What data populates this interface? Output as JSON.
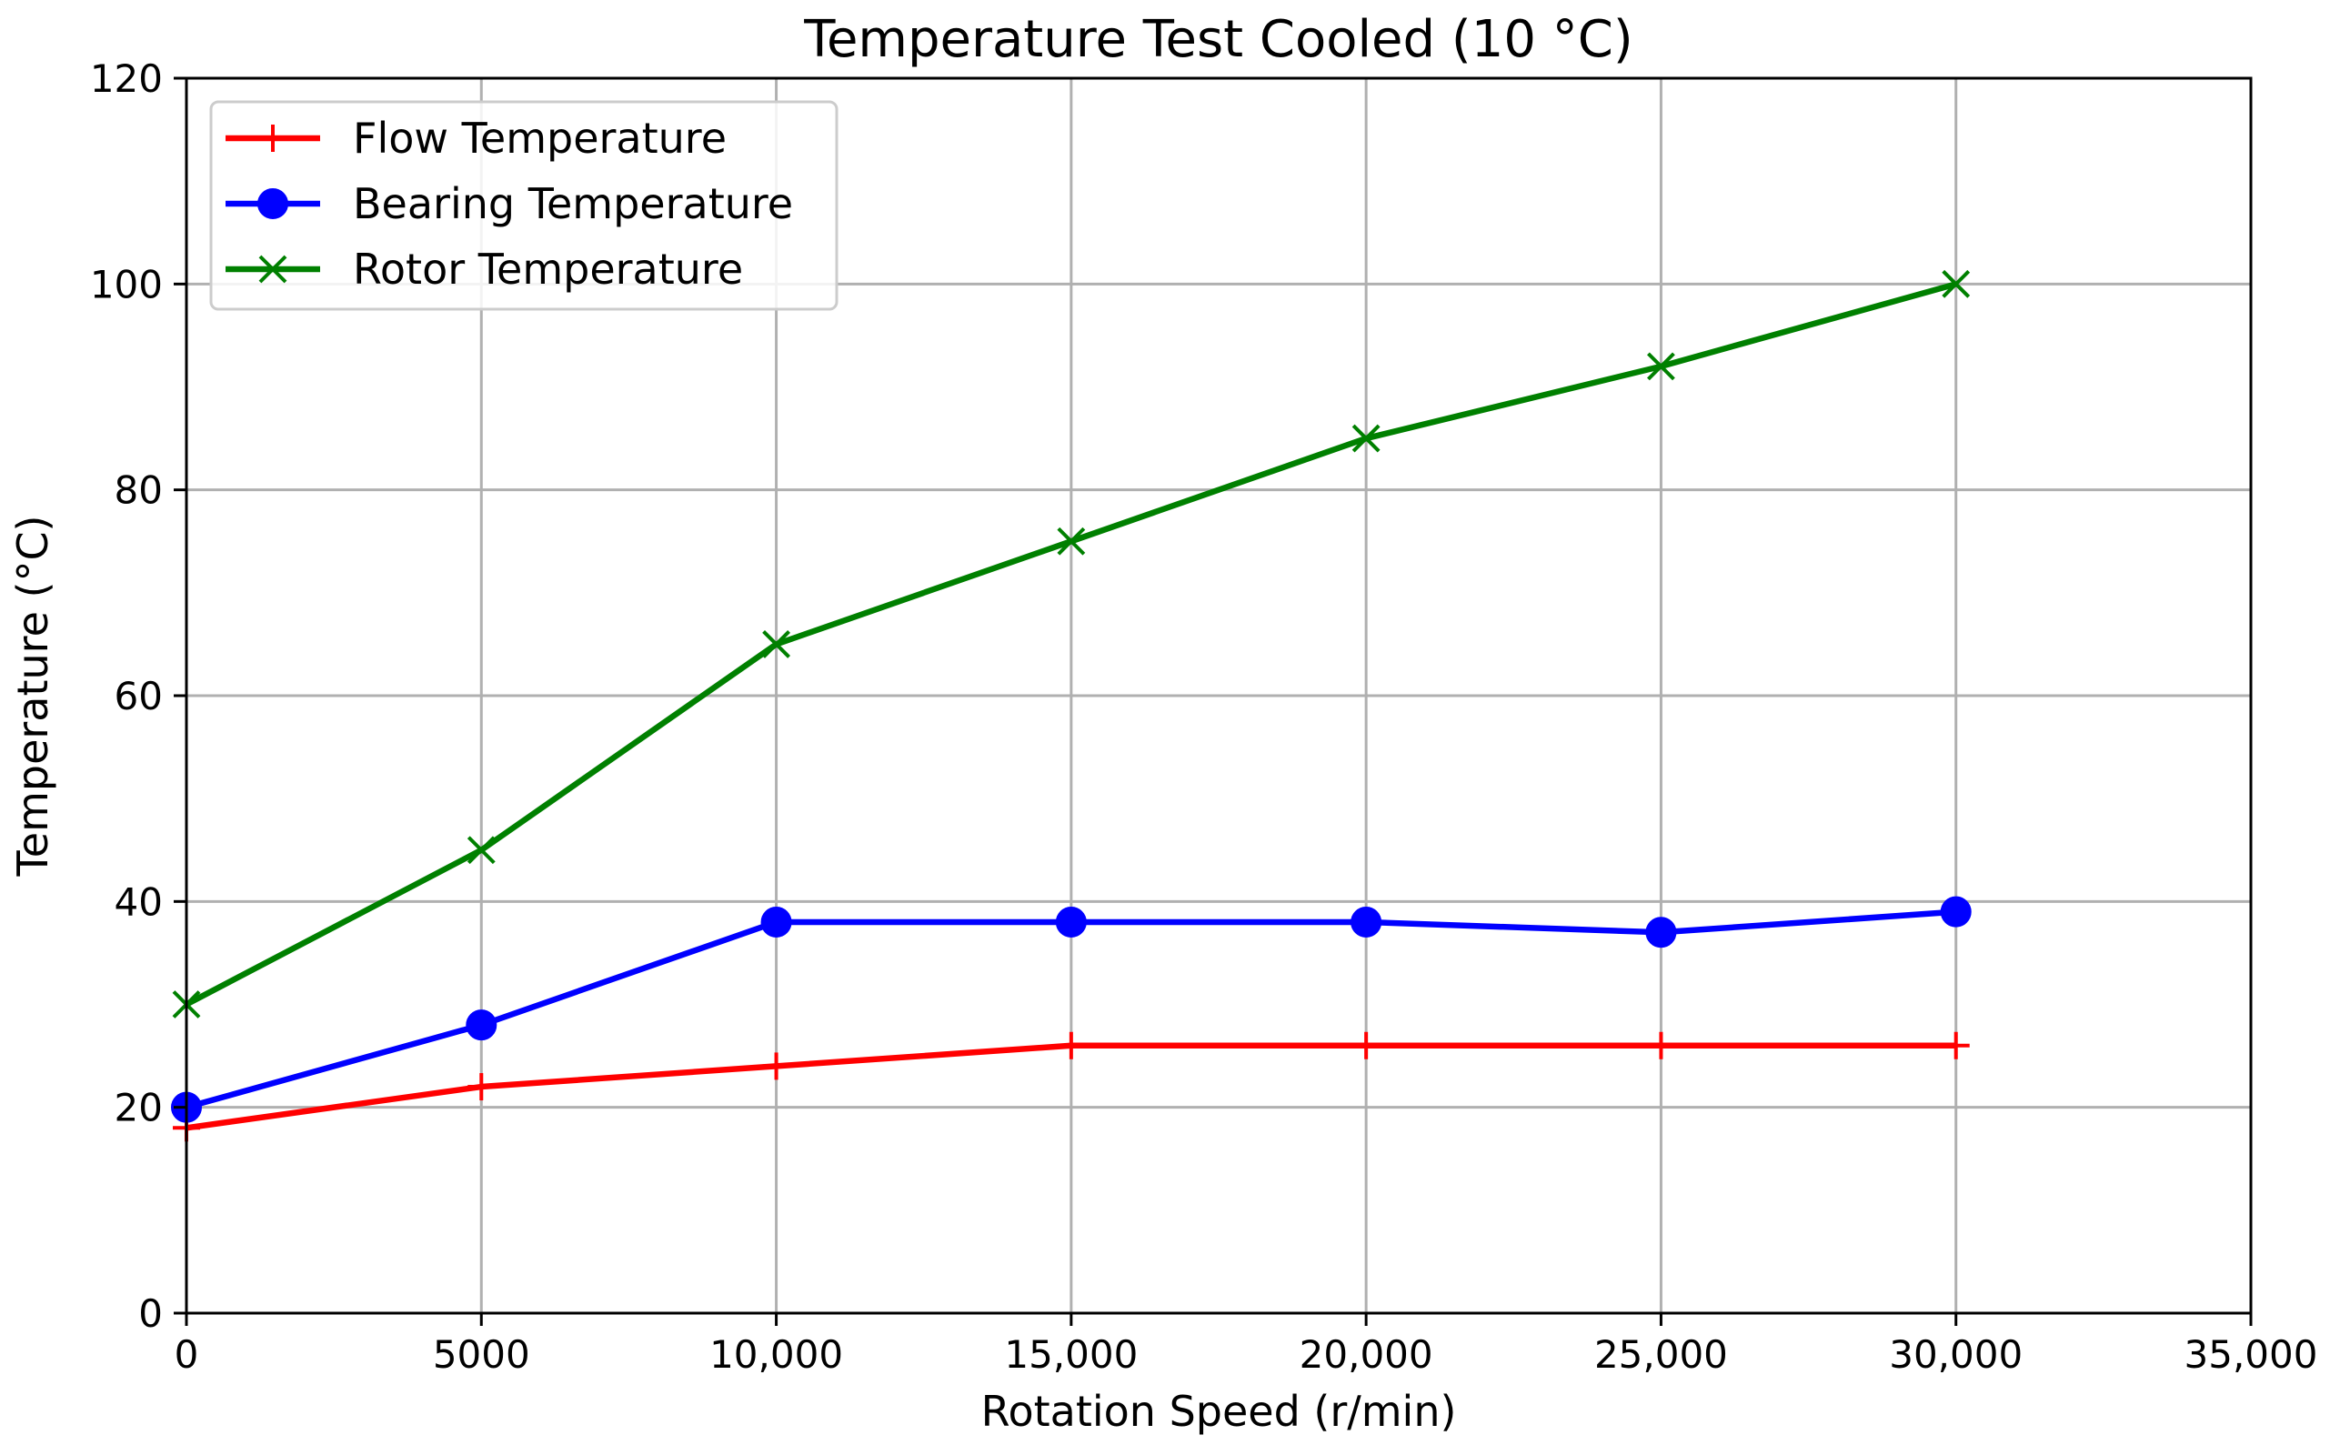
{
  "chart_data": {
    "type": "line",
    "title": "Temperature Test Cooled (10 °C)",
    "xlabel": "Rotation Speed (r/min)",
    "ylabel": "Temperature (°C)",
    "x": [
      0,
      5000,
      10000,
      15000,
      20000,
      25000,
      30000
    ],
    "xlim": [
      0,
      35000
    ],
    "ylim": [
      0,
      120
    ],
    "x_ticks": [
      0,
      5000,
      10000,
      15000,
      20000,
      25000,
      30000,
      35000
    ],
    "x_tick_labels": [
      "0",
      "5000",
      "10,000",
      "15,000",
      "20,000",
      "25,000",
      "30,000",
      "35,000"
    ],
    "y_ticks": [
      0,
      20,
      40,
      60,
      80,
      100,
      120
    ],
    "y_tick_labels": [
      "0",
      "20",
      "40",
      "60",
      "80",
      "100",
      "120"
    ],
    "grid": true,
    "legend_position": "top-left",
    "series": [
      {
        "name": "Flow Temperature",
        "color": "#ff0000",
        "marker": "plus",
        "values": [
          18,
          22,
          24,
          26,
          26,
          26,
          26
        ]
      },
      {
        "name": "Bearing Temperature",
        "color": "#0000ff",
        "marker": "circle",
        "values": [
          20,
          28,
          38,
          38,
          38,
          37,
          39
        ]
      },
      {
        "name": "Rotor Temperature",
        "color": "#008000",
        "marker": "x",
        "values": [
          30,
          45,
          65,
          75,
          85,
          92,
          100
        ]
      }
    ]
  }
}
